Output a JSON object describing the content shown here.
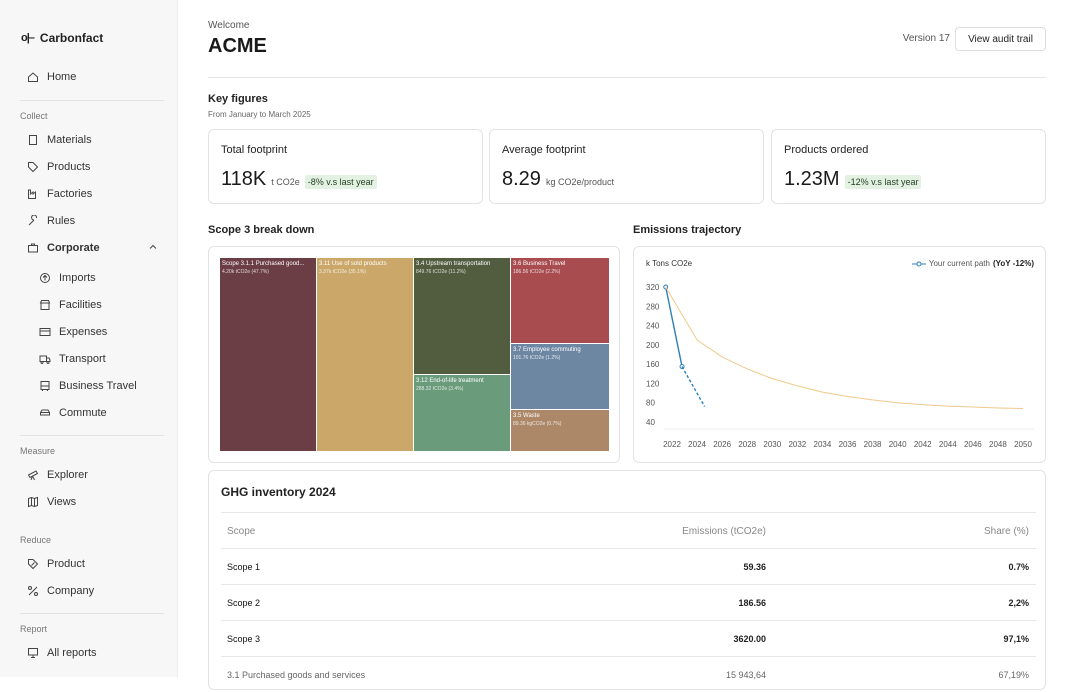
{
  "app": {
    "name": "Carbonfact",
    "logo_mark": "o|–"
  },
  "sidebar": {
    "home": "Home",
    "sections": {
      "collect": "Collect",
      "measure": "Measure",
      "reduce": "Reduce",
      "report": "Report"
    },
    "collect_items": [
      "Materials",
      "Products",
      "Factories",
      "Rules",
      "Corporate"
    ],
    "corporate_items": [
      "Imports",
      "Facilities",
      "Expenses",
      "Transport",
      "Business Travel",
      "Commute"
    ],
    "measure_items": [
      "Explorer",
      "Views"
    ],
    "reduce_items": [
      "Product",
      "Company"
    ],
    "report_items": [
      "All reports"
    ]
  },
  "header": {
    "welcome": "Welcome",
    "company": "ACME",
    "version": "Version 17",
    "audit_button": "View audit trail"
  },
  "key_figures": {
    "title": "Key figures",
    "subtitle": "From January to March 2025",
    "cards": [
      {
        "title": "Total footprint",
        "value": "118K",
        "unit": "t CO2e",
        "badge": "-8% v.s last year"
      },
      {
        "title": "Average footprint",
        "value": "8.29",
        "unit": "kg CO2e/product",
        "badge": ""
      },
      {
        "title": "Products ordered",
        "value": "1.23M",
        "unit": "",
        "badge": "-12% v.s last year"
      }
    ]
  },
  "scope3": {
    "title": "Scope 3 break down",
    "tiles": [
      {
        "label": "Scope 3.1.1 Purchased good...",
        "value": "4.20k tCO2e (47.7%)",
        "color": "#6b3d45"
      },
      {
        "label": "3.11 Use of sold products",
        "value": "3.37k tCO2e (35.1%)",
        "color": "#cba86a"
      },
      {
        "label": "3.4 Upstream transportation",
        "value": "849.76 tCO2e (11.2%)",
        "color": "#525c3f"
      },
      {
        "label": "3.6 Business Travel",
        "value": "186.56 tCO2e (2.2%)",
        "color": "#a84c50"
      },
      {
        "label": "3.7 Employee commuting",
        "value": "101.76 tCO2e (1.2%)",
        "color": "#6d87a3"
      },
      {
        "label": "3.12 End-of-life treatment",
        "value": "288.32 tCO2e (3.4%)",
        "color": "#6a9b7a"
      },
      {
        "label": "3.5 Waste",
        "value": "89.36 kgCO2e (0.7%)",
        "color": "#ad8868"
      }
    ]
  },
  "trajectory": {
    "title": "Emissions trajectory",
    "legend": "Your current path",
    "legend_bold": "(YoY -12%)",
    "colors": {
      "path": "#2f7fb8",
      "target": "#f0c98a"
    }
  },
  "chart_data": {
    "type": "line",
    "ylabel": "k Tons CO2e",
    "xlabel": "",
    "ylim": [
      40,
      320
    ],
    "y_ticks": [
      320,
      280,
      240,
      200,
      160,
      120,
      80,
      40
    ],
    "x_ticks": [
      2022,
      2024,
      2026,
      2028,
      2030,
      2032,
      2034,
      2036,
      2038,
      2040,
      2042,
      2044,
      2046,
      2048,
      2050
    ],
    "series": [
      {
        "name": "Your current path (YoY -12%)",
        "x": [
          2021.5,
          2022.8
        ],
        "y": [
          320,
          155
        ]
      },
      {
        "x": [
          2022.8,
          2024.6
        ],
        "y": [
          155,
          72
        ],
        "style": "dashed"
      },
      {
        "x": [
          2021.5,
          2024,
          2026,
          2028,
          2030,
          2032,
          2034,
          2036,
          2038,
          2040,
          2042,
          2044,
          2046,
          2048,
          2050
        ],
        "y": [
          320,
          210,
          175,
          150,
          130,
          115,
          102,
          93,
          86,
          80,
          76,
          73,
          71,
          69,
          68
        ],
        "style": "target"
      }
    ]
  },
  "ghg": {
    "title": "GHG inventory 2024",
    "headers": [
      "Scope",
      "Emissions (tCO2e)",
      "Share (%)"
    ],
    "rows": [
      [
        "Scope 1",
        "59.36",
        "0.7%"
      ],
      [
        "Scope 2",
        "186.56",
        "2,2%"
      ],
      [
        "Scope 3",
        "3620.00",
        "97,1%"
      ],
      [
        "3.1 Purchased goods and services",
        "15 943,64",
        "67,19%"
      ]
    ]
  }
}
